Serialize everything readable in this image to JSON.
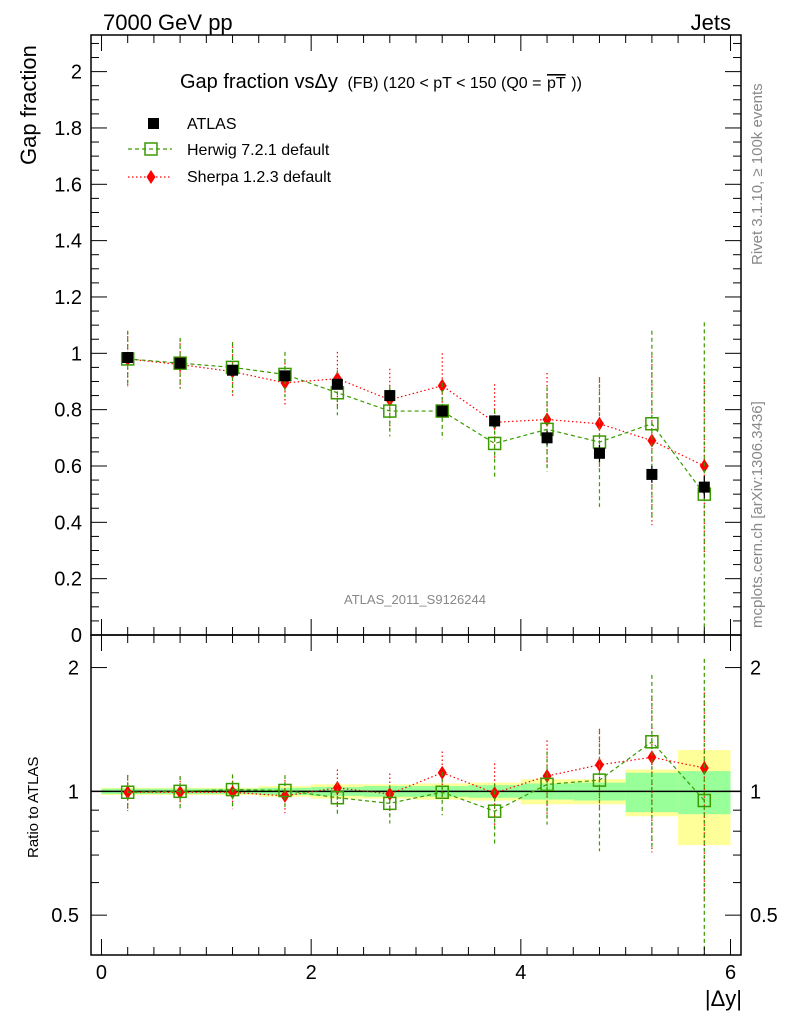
{
  "header": {
    "left": "7000 GeV pp",
    "right": "Jets"
  },
  "side_text": {
    "rivet": "Rivet 3.1.10, ≥ 100k events",
    "mcplots": "mcplots.cern.ch [arXiv:1306.3436]"
  },
  "watermark": "ATLAS_2011_S9126244",
  "colors": {
    "atlas": "#000000",
    "herwig": "#3a9a00",
    "sherpa": "#ff0000",
    "band_yellow": "#ffff99",
    "band_green": "#99ff99"
  },
  "chart_data": [
    {
      "type": "scatter",
      "panel": "main",
      "title_main": "Gap fraction vsΔy",
      "title_sub": "(FB) (120 < pT < 150 (Q0 =",
      "title_over": "pT",
      "title_end": "))",
      "ylabel": "Gap fraction",
      "ylim": [
        0,
        2.13
      ],
      "yticks": [
        0,
        0.2,
        0.4,
        0.6,
        0.8,
        1,
        1.2,
        1.4,
        1.6,
        1.8,
        2
      ],
      "ytick_labels": [
        "0",
        "0.2",
        "0.4",
        "0.6",
        "0.8",
        "1",
        "1.2",
        "1.4",
        "1.6",
        "1.8",
        "2"
      ],
      "x": [
        0.25,
        0.75,
        1.25,
        1.75,
        2.25,
        2.75,
        3.25,
        3.75,
        4.25,
        4.75,
        5.25,
        5.75
      ],
      "legend": [
        "ATLAS",
        "Herwig 7.2.1 default",
        "Sherpa 1.2.3 default"
      ],
      "series": [
        {
          "name": "ATLAS",
          "values": [
            0.985,
            0.965,
            0.94,
            0.92,
            0.89,
            0.85,
            0.795,
            0.76,
            0.7,
            0.645,
            0.57,
            0.525
          ],
          "err": [
            0.01,
            0.01,
            0.01,
            0.012,
            0.015,
            0.015,
            0.02,
            0.02,
            0.025,
            0.03,
            0.03,
            0.04
          ]
        },
        {
          "name": "Herwig 7.2.1 default",
          "values": [
            0.98,
            0.965,
            0.95,
            0.925,
            0.86,
            0.795,
            0.795,
            0.68,
            0.73,
            0.685,
            0.75,
            0.5
          ],
          "err": [
            0.1,
            0.09,
            0.09,
            0.08,
            0.08,
            0.09,
            0.1,
            0.12,
            0.15,
            0.23,
            0.33,
            0.61
          ]
        },
        {
          "name": "Sherpa 1.2.3 default",
          "values": [
            0.98,
            0.96,
            0.935,
            0.895,
            0.91,
            0.835,
            0.885,
            0.755,
            0.765,
            0.75,
            0.69,
            0.6
          ],
          "err": [
            0.095,
            0.09,
            0.09,
            0.085,
            0.095,
            0.11,
            0.115,
            0.135,
            0.165,
            0.165,
            0.3,
            0.31
          ]
        }
      ]
    },
    {
      "type": "scatter",
      "panel": "ratio",
      "ylabel": "Ratio to ATLAS",
      "xlabel": "|Δy|",
      "ylim": [
        0.4,
        2.4
      ],
      "yscale": "log",
      "yticks": [
        0.5,
        1,
        2
      ],
      "ytick_labels": [
        "0.5",
        "1",
        "2"
      ],
      "xlim": [
        -0.1,
        6.1
      ],
      "xticks": [
        0,
        2,
        4,
        6
      ],
      "xtick_labels": [
        "0",
        "2",
        "4",
        "6"
      ],
      "x": [
        0.25,
        0.75,
        1.25,
        1.75,
        2.25,
        2.75,
        3.25,
        3.75,
        4.25,
        4.75,
        5.25,
        5.75
      ],
      "band_green": [
        0.015,
        0.015,
        0.015,
        0.02,
        0.025,
        0.03,
        0.03,
        0.035,
        0.045,
        0.05,
        0.11,
        0.12
      ],
      "band_yellow": [
        0.02,
        0.02,
        0.02,
        0.03,
        0.04,
        0.04,
        0.045,
        0.05,
        0.07,
        0.07,
        0.13,
        0.26
      ],
      "series": [
        {
          "name": "Herwig 7.2.1 default",
          "values": [
            0.995,
            1.0,
            1.01,
            1.005,
            0.965,
            0.935,
            0.995,
            0.895,
            1.04,
            1.065,
            1.32,
            0.95
          ],
          "err": [
            0.1,
            0.09,
            0.09,
            0.09,
            0.09,
            0.1,
            0.12,
            0.15,
            0.21,
            0.35,
            0.6,
            1.15
          ]
        },
        {
          "name": "Sherpa 1.2.3 default",
          "values": [
            0.995,
            0.995,
            0.995,
            0.975,
            1.02,
            0.985,
            1.11,
            0.99,
            1.09,
            1.16,
            1.21,
            1.14
          ],
          "err": [
            0.1,
            0.09,
            0.09,
            0.09,
            0.11,
            0.12,
            0.14,
            0.18,
            0.24,
            0.26,
            0.5,
            0.6
          ]
        }
      ]
    }
  ]
}
